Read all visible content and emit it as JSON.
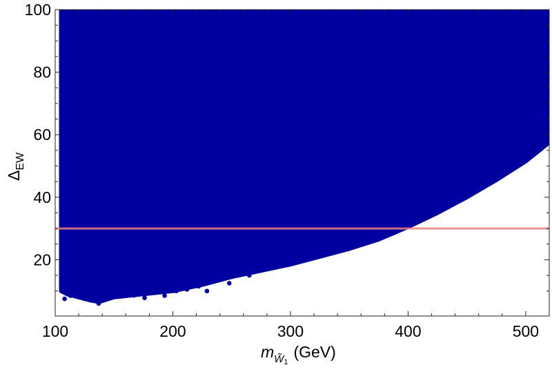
{
  "chart_data": {
    "type": "scatter",
    "title": "",
    "xlabel": {
      "main": "m",
      "subscript": "W̃",
      "subscript_index": "1",
      "unit": "(GeV)"
    },
    "ylabel": {
      "main": "Δ",
      "subscript": "EW"
    },
    "xlim": [
      100,
      520
    ],
    "ylim": [
      2,
      100
    ],
    "x_ticks": [
      100,
      200,
      300,
      400,
      500
    ],
    "y_ticks": [
      20,
      40,
      60,
      80,
      100
    ],
    "x_tick_labels": [
      "100",
      "200",
      "300",
      "400",
      "500"
    ],
    "y_tick_labels": [
      "20",
      "40",
      "60",
      "80",
      "100"
    ],
    "grid": false,
    "legend": "none",
    "point_color": "#0000a0",
    "reference_line": {
      "y": 30,
      "color": "#f08080"
    },
    "filled_region": {
      "description_of_data": "dense scatter of model points filling the region above the lower boundary",
      "x_min": 105,
      "lower_boundary": [
        [
          105,
          10
        ],
        [
          110,
          9
        ],
        [
          120,
          8
        ],
        [
          130,
          7
        ],
        [
          137,
          6.5
        ],
        [
          150,
          8
        ],
        [
          175,
          9
        ],
        [
          200,
          10
        ],
        [
          225,
          12
        ],
        [
          250,
          14.5
        ],
        [
          275,
          16.5
        ],
        [
          300,
          18.5
        ],
        [
          325,
          21
        ],
        [
          350,
          23.5
        ],
        [
          375,
          26.5
        ],
        [
          400,
          30.5
        ],
        [
          425,
          35
        ],
        [
          450,
          40
        ],
        [
          475,
          45.5
        ],
        [
          500,
          51.5
        ],
        [
          520,
          57.5
        ]
      ]
    },
    "outlier_points": [
      {
        "x": 108,
        "y": 7.5
      },
      {
        "x": 113,
        "y": 8.5
      },
      {
        "x": 121,
        "y": 9
      },
      {
        "x": 124,
        "y": 7.7
      },
      {
        "x": 131,
        "y": 8.2
      },
      {
        "x": 137,
        "y": 6
      },
      {
        "x": 146,
        "y": 9
      },
      {
        "x": 157,
        "y": 8.4
      },
      {
        "x": 167,
        "y": 8.6
      },
      {
        "x": 176,
        "y": 7.8
      },
      {
        "x": 185,
        "y": 9.5
      },
      {
        "x": 193,
        "y": 8.5
      },
      {
        "x": 203,
        "y": 10
      },
      {
        "x": 212,
        "y": 10.5
      },
      {
        "x": 222,
        "y": 11.5
      },
      {
        "x": 229,
        "y": 10
      },
      {
        "x": 240,
        "y": 14
      },
      {
        "x": 248,
        "y": 12.5
      },
      {
        "x": 265,
        "y": 15
      },
      {
        "x": 279,
        "y": 17
      },
      {
        "x": 115,
        "y": 12.5
      },
      {
        "x": 151,
        "y": 10
      },
      {
        "x": 190,
        "y": 12
      },
      {
        "x": 161,
        "y": 11.5
      }
    ]
  }
}
